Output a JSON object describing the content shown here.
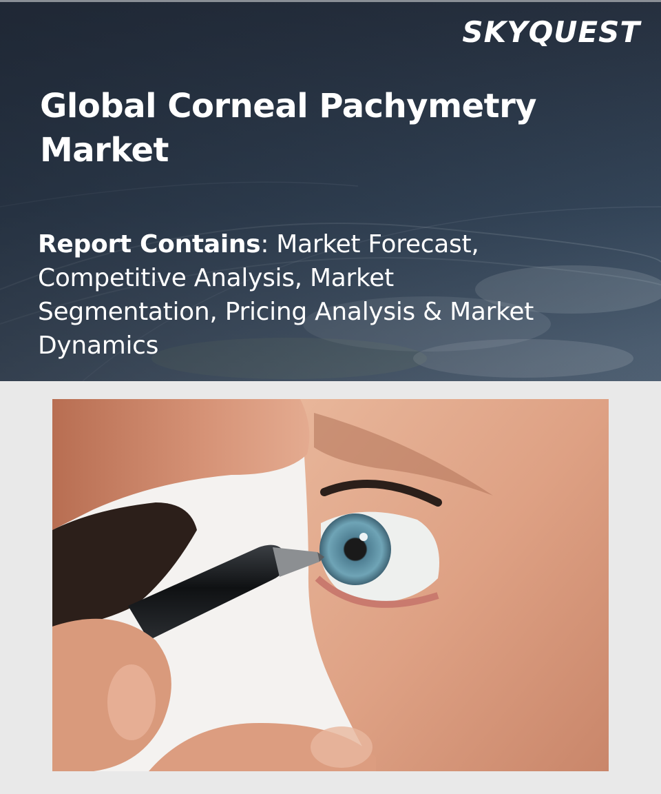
{
  "brand": {
    "logo_text": "SKYQUEST"
  },
  "header": {
    "title": "Global Corneal Pachymetry Market"
  },
  "report": {
    "label": "Report Contains",
    "text": ": Market Forecast, Competitive Analysis, Market Segmentation, Pricing Analysis & Market Dynamics"
  },
  "image": {
    "subject": "eye-with-pachymeter-probe"
  },
  "colors": {
    "banner": "#34455a",
    "background": "#e9e9e9",
    "text": "#ffffff"
  }
}
